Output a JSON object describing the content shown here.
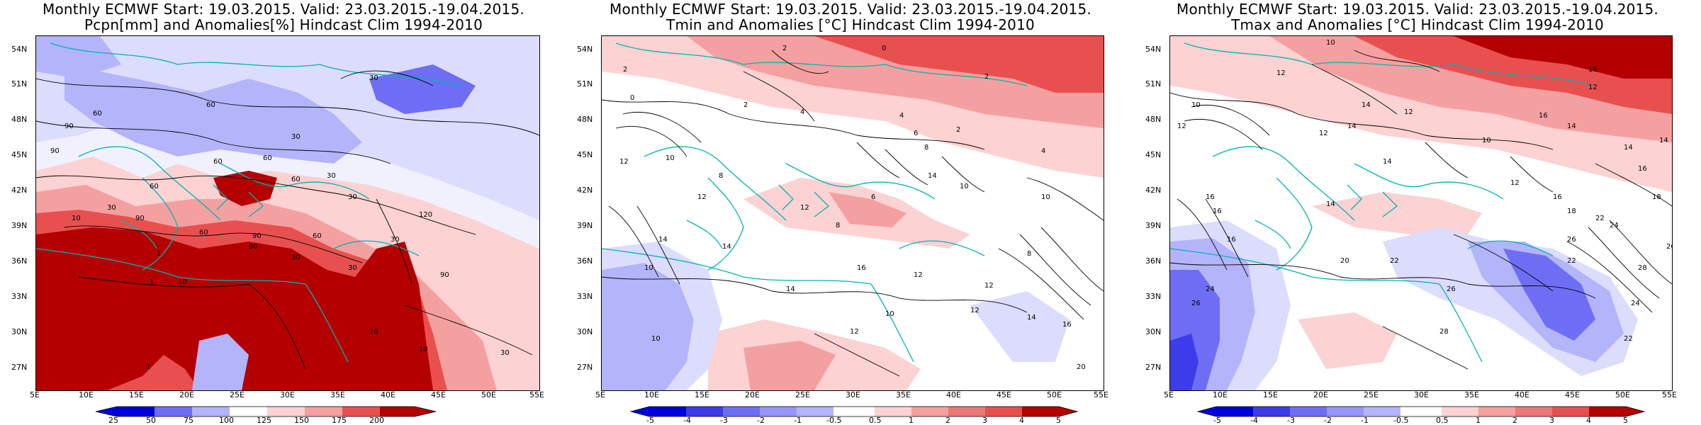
{
  "colors": {
    "deep_blue": "#0000dc",
    "blue": "#6e6ef5",
    "light_blue": "#b4b4fa",
    "pale_blue": "#dcdcfd",
    "white": "#ffffff",
    "pale_red": "#fcd2d2",
    "light_red": "#f5a0a0",
    "red": "#e85050",
    "dark_red": "#b40000",
    "coast": "#00b4b4",
    "contour": "#000000"
  },
  "panels": [
    {
      "title_line1": "Monthly ECMWF Start: 19.03.2015. Valid: 23.03.2015.-19.04.2015.",
      "title_line2": "Pcpn[mm] and Anomalies[%] Hindcast Clim 1994-2010",
      "lat_labels": [
        "54N",
        "51N",
        "48N",
        "45N",
        "42N",
        "39N",
        "36N",
        "33N",
        "30N",
        "27N"
      ],
      "lon_labels": [
        "5E",
        "10E",
        "15E",
        "20E",
        "25E",
        "30E",
        "35E",
        "40E",
        "45E",
        "50E",
        "55E"
      ],
      "colorbar_labels": [
        "25",
        "50",
        "75",
        "100",
        "125",
        "150",
        "175",
        "200"
      ],
      "contour_labels": [
        "30",
        "60",
        "90",
        "60",
        "30",
        "60",
        "90",
        "60",
        "60",
        "30",
        "60",
        "30",
        "120",
        "30",
        "90",
        "60",
        "90",
        "60",
        "90",
        "30",
        "30",
        "30",
        "90",
        "30",
        "10",
        "1",
        "1",
        "10",
        "10",
        "10",
        "1"
      ]
    },
    {
      "title_line1": "Monthly ECMWF Start: 19.03.2015. Valid: 23.03.2015.-19.04.2015.",
      "title_line2": "Tmin and Anomalies [°C] Hindcast Clim 1994-2010",
      "lat_labels": [
        "54N",
        "51N",
        "48N",
        "45N",
        "42N",
        "39N",
        "36N",
        "33N",
        "30N",
        "27N"
      ],
      "lon_labels": [
        "5E",
        "10E",
        "15E",
        "20E",
        "25E",
        "30E",
        "35E",
        "40E",
        "45E",
        "50E",
        "55E"
      ],
      "colorbar_labels": [
        "-5",
        "-4",
        "-3",
        "-2",
        "-1",
        "-0.5",
        "0.5",
        "1",
        "2",
        "3",
        "4",
        "5"
      ],
      "contour_labels": [
        "2",
        "0",
        "2",
        "2",
        "0",
        "4",
        "2",
        "4",
        "6",
        "2",
        "8",
        "4",
        "12",
        "10",
        "8",
        "14",
        "10",
        "12",
        "12",
        "6",
        "10",
        "8",
        "14",
        "16",
        "12",
        "14",
        "12",
        "8",
        "10",
        "12",
        "10",
        "12",
        "14",
        "16",
        "20",
        "14",
        "10"
      ]
    },
    {
      "title_line1": "Monthly ECMWF Start: 19.03.2015. Valid: 23.03.2015.-19.04.2015.",
      "title_line2": "Tmax and Anomalies [°C] Hindcast Clim 1994-2010",
      "lat_labels": [
        "54N",
        "51N",
        "48N",
        "45N",
        "42N",
        "39N",
        "36N",
        "33N",
        "30N",
        "27N"
      ],
      "lon_labels": [
        "5E",
        "10E",
        "15E",
        "20E",
        "25E",
        "30E",
        "35E",
        "40E",
        "45E",
        "50E",
        "55E"
      ],
      "colorbar_labels": [
        "-5",
        "-4",
        "-3",
        "-2",
        "-1",
        "-0.5",
        "0.5",
        "1",
        "2",
        "3",
        "4",
        "5"
      ],
      "contour_labels": [
        "10",
        "12",
        "16",
        "12",
        "10",
        "14",
        "12",
        "16",
        "14",
        "12",
        "10",
        "14",
        "12",
        "14",
        "16",
        "14",
        "18",
        "16",
        "12",
        "14",
        "16",
        "18",
        "22",
        "16",
        "20",
        "24",
        "22",
        "26",
        "24",
        "22",
        "26",
        "28",
        "26",
        "24",
        "26",
        "28",
        "22",
        "16",
        "14"
      ]
    }
  ]
}
